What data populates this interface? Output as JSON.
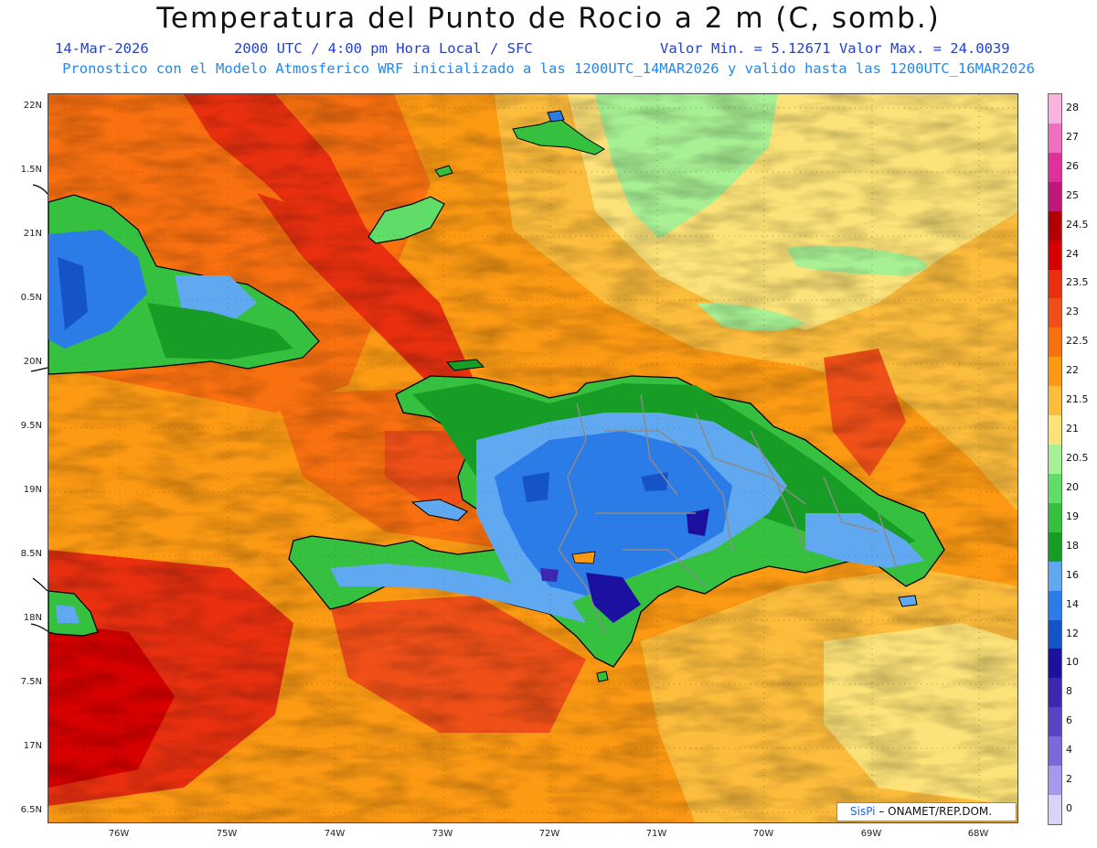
{
  "title": "Temperatura del Punto de Rocio a 2 m (C, somb.)",
  "header": {
    "date": "14-Mar-2026",
    "time": "2000 UTC / 4:00 pm Hora Local / SFC",
    "min_max": "Valor Min. = 5.12671  Valor Max. = 24.0039",
    "model_info": "Pronostico con el Modelo Atmosferico WRF inicializado a las 1200UTC_14MAR2026 y valido hasta las  1200UTC_16MAR2026"
  },
  "credit": {
    "brand": "SisPi",
    "org": "– ONAMET/REP.DOM."
  },
  "axes": {
    "lat_labels": [
      "22N",
      "1.5N",
      "21N",
      "0.5N",
      "20N",
      "9.5N",
      "19N",
      "8.5N",
      "18N",
      "7.5N",
      "17N",
      "6.5N"
    ],
    "lon_labels": [
      "76W",
      "75W",
      "74W",
      "73W",
      "72W",
      "71W",
      "70W",
      "69W",
      "68W"
    ]
  },
  "legend": {
    "labels": [
      "28",
      "27",
      "26",
      "25",
      "24.5",
      "24",
      "23.5",
      "23",
      "22.5",
      "22",
      "21.5",
      "21",
      "20.5",
      "20",
      "19",
      "18",
      "16",
      "14",
      "12",
      "10",
      "8",
      "6",
      "4",
      "2",
      "0"
    ],
    "colors": [
      "#f8b4dc",
      "#f070c0",
      "#e0309c",
      "#c01878",
      "#b00000",
      "#d60000",
      "#e83010",
      "#f05018",
      "#f87010",
      "#fc9a14",
      "#fcbc3c",
      "#fce278",
      "#a8f094",
      "#60dc68",
      "#36c040",
      "#179c26",
      "#60a8f0",
      "#2c7ce8",
      "#1454c8",
      "#1c10a0",
      "#3c28b0",
      "#5a44c4",
      "#7c68d8",
      "#a898ec",
      "#d8d4f8"
    ]
  }
}
